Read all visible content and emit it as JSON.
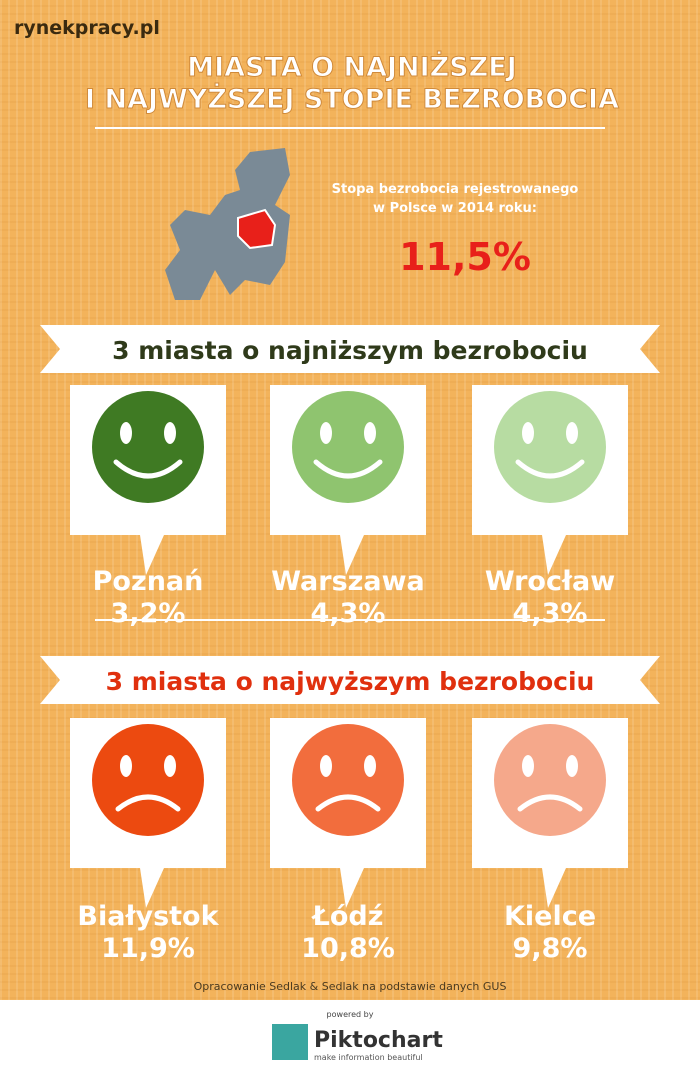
{
  "brand": "rynekpracy.pl",
  "title": [
    "MIASTA O NAJNIŻSZEJ",
    "I NAJWYŻSZEJ STOPIE BEZROBOCIA"
  ],
  "national": {
    "caption": [
      "Stopa bezrobocia rejestrowanego",
      "w Polsce w 2014 roku:"
    ],
    "value": "11,5%"
  },
  "lowest": {
    "heading": "3 miasta o najniższym bezrobociu",
    "cities": [
      {
        "name": "Poznań",
        "value": "3,2%"
      },
      {
        "name": "Warszawa",
        "value": "4,3%"
      },
      {
        "name": "Wrocław",
        "value": "4,3%"
      }
    ]
  },
  "highest": {
    "heading": "3 miasta o najwyższym bezrobociu",
    "cities": [
      {
        "name": "Białystok",
        "value": "11,9%"
      },
      {
        "name": "Łódź",
        "value": "10,8%"
      },
      {
        "name": "Kielce",
        "value": "9,8%"
      }
    ]
  },
  "source": "Opracowanie Sedlak & Sedlak na podstawie danych GUS",
  "footer": {
    "powered": "powered by",
    "logo": "Piktochart",
    "tagline": "make information beautiful"
  }
}
